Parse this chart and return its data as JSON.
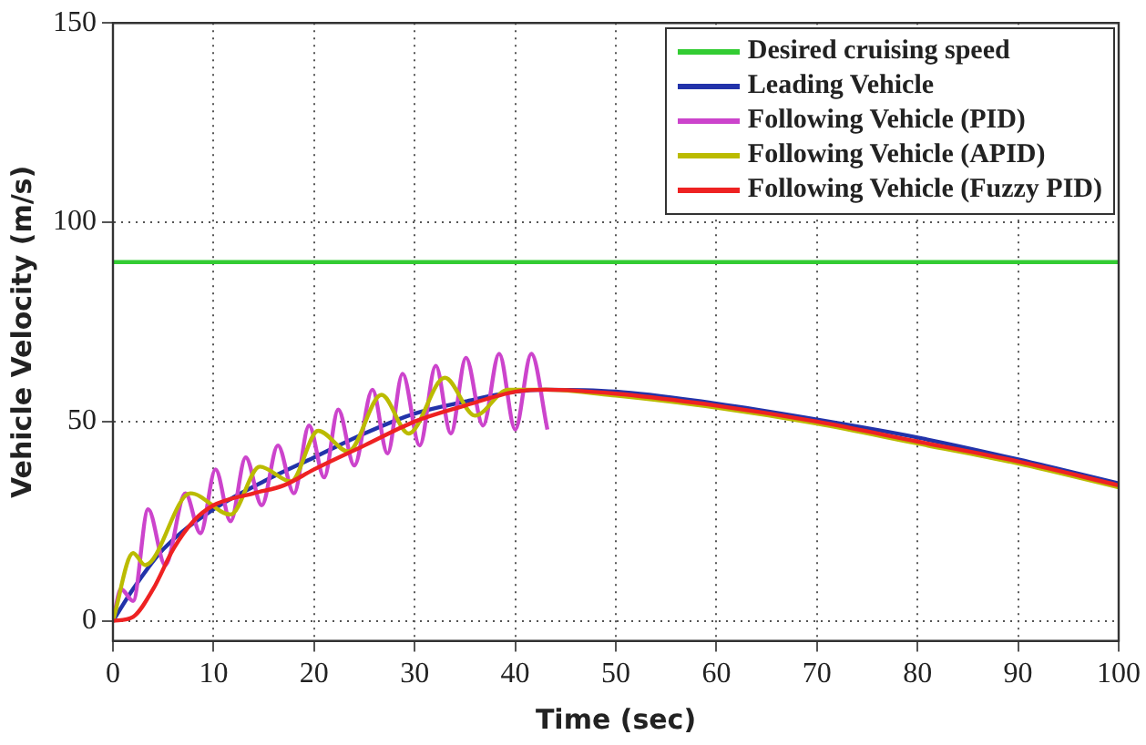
{
  "chart_data": {
    "type": "line",
    "xlabel": "Time (sec)",
    "ylabel": "Vehicle Velocity (m/s)",
    "xlim": [
      0,
      100
    ],
    "xticks": [
      0,
      10,
      20,
      30,
      40,
      50,
      60,
      70,
      80,
      90,
      100
    ],
    "ylim": [
      -5,
      150
    ],
    "yticks": [
      0,
      50,
      100,
      150
    ],
    "grid": true,
    "legend": "top right",
    "marker": "none",
    "line_style": "solid",
    "series": [
      {
        "name": "Desired cruising speed",
        "color": "#33cc33",
        "x": [
          0,
          100
        ],
        "values": [
          90,
          90
        ]
      },
      {
        "name": "Leading Vehicle",
        "color": "#2233aa",
        "x": [
          0,
          2,
          5,
          10,
          15,
          20,
          25,
          30,
          35,
          40,
          43,
          50,
          60,
          70,
          80,
          90,
          100
        ],
        "values": [
          0,
          8,
          18,
          28,
          35,
          41,
          47,
          52,
          55,
          57.5,
          58,
          57.5,
          54.5,
          50.5,
          46,
          40.5,
          34.5
        ]
      },
      {
        "name": "Following Vehicle (PID)",
        "color": "#cc44cc",
        "x": [
          0,
          0.8,
          2,
          3.5,
          5.2,
          7.2,
          8.7,
          10.2,
          11.7,
          13.2,
          14.8,
          16.4,
          18,
          19.5,
          21,
          22.4,
          24,
          25.8,
          27.3,
          28.8,
          30.5,
          32.1,
          33.6,
          35.1,
          36.8,
          38.4,
          40,
          41.6,
          43.2
        ],
        "values": [
          0,
          8,
          5,
          28,
          14,
          32,
          22,
          38,
          25,
          41,
          29,
          44,
          32,
          49,
          36,
          53,
          39,
          58,
          42,
          62,
          44,
          64,
          47,
          66,
          49,
          67,
          48,
          67,
          48
        ]
      },
      {
        "name": "Following Vehicle (APID)",
        "color": "#bbbb00",
        "x": [
          0,
          2,
          3.2,
          7.7,
          11.7,
          14.6,
          17.7,
          20.4,
          23.4,
          26.7,
          29.4,
          33,
          36,
          39.3,
          43,
          50,
          60,
          70,
          80,
          90,
          100
        ],
        "values": [
          0,
          17,
          14,
          32,
          26.7,
          38.7,
          35,
          47.7,
          42.5,
          56.7,
          47,
          61,
          51.5,
          58,
          58,
          56.5,
          53.5,
          49.5,
          44.5,
          39.5,
          33.5
        ]
      },
      {
        "name": "Following Vehicle (Fuzzy PID)",
        "color": "#ee2222",
        "x": [
          0,
          2,
          4,
          6,
          8,
          10,
          14,
          17,
          20,
          25,
          30,
          35,
          40,
          43,
          50,
          60,
          70,
          80,
          90,
          100
        ],
        "values": [
          0,
          1,
          8,
          18,
          25,
          29,
          32,
          34,
          38,
          44,
          50,
          54,
          57.5,
          58,
          57,
          54,
          50,
          45,
          40,
          34
        ]
      }
    ]
  }
}
